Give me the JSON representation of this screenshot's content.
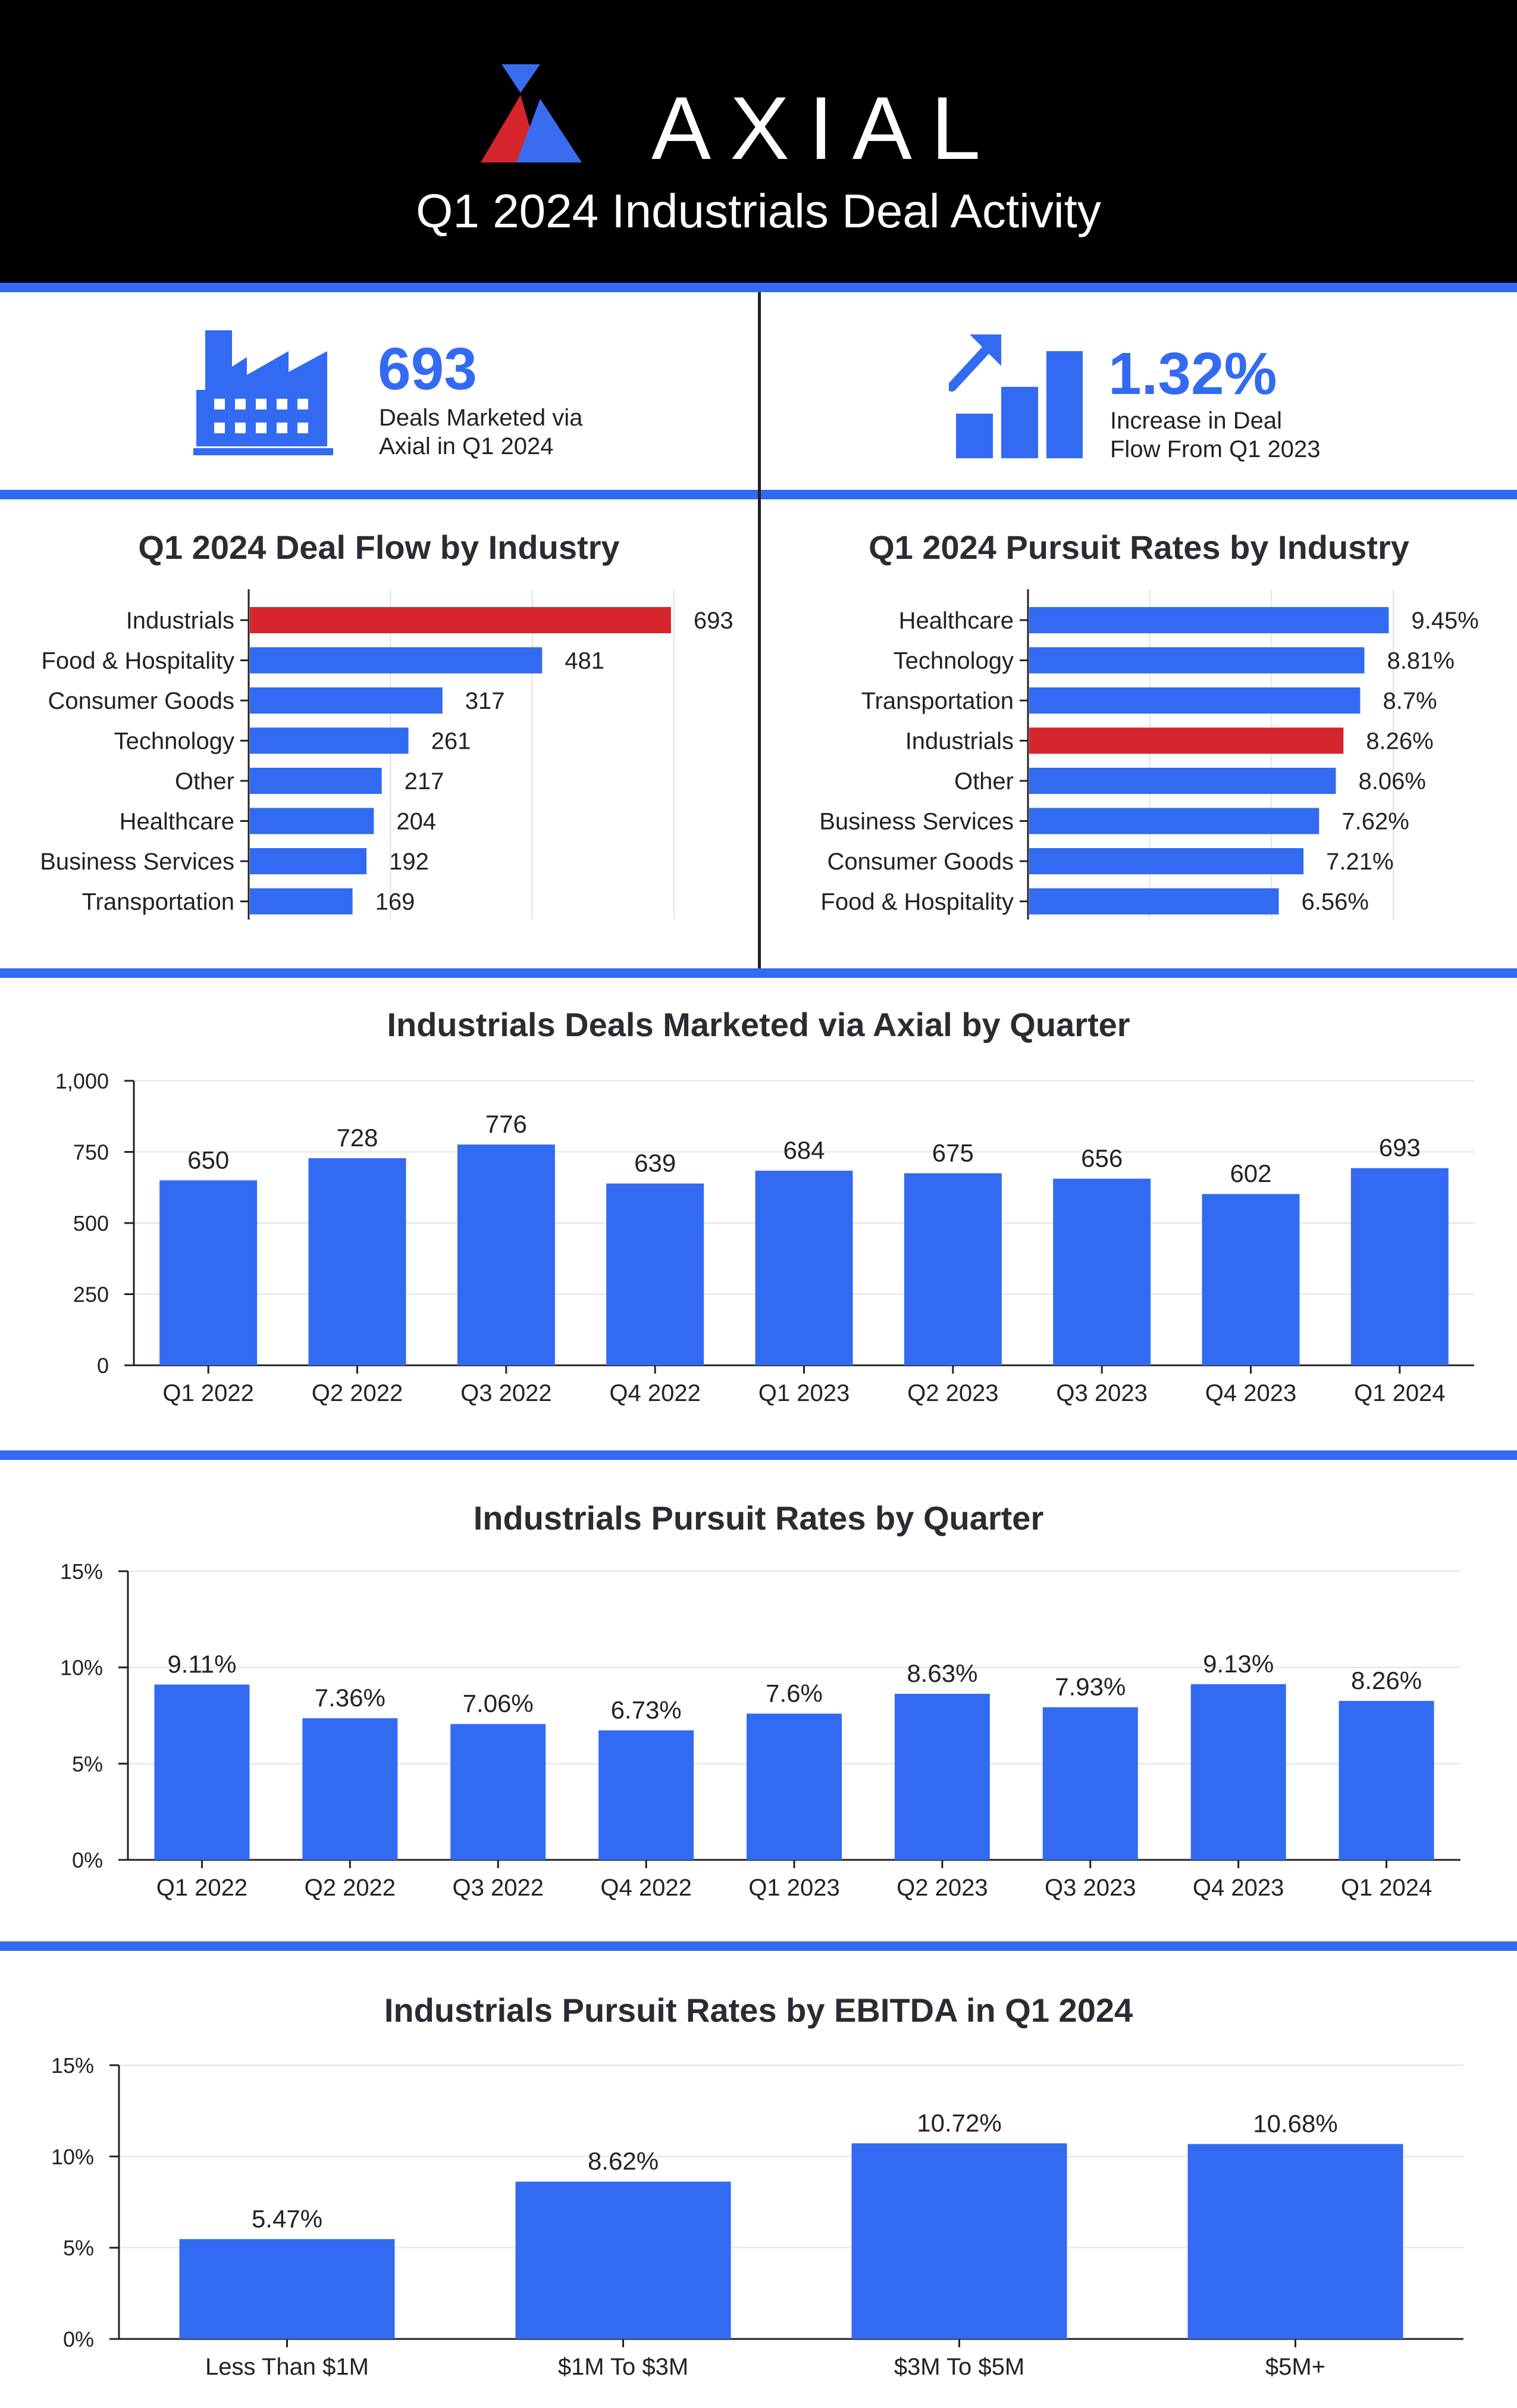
{
  "header": {
    "brand": "AXIAL",
    "title": "Q1 2024 Industrials Deal Activity"
  },
  "colors": {
    "primary": "#336af2",
    "highlight": "#d6262d",
    "header_bg": "#000000"
  },
  "stats": [
    {
      "value": "693",
      "line1": "Deals Marketed via",
      "line2": "Axial in Q1 2024",
      "icon": "factory-icon"
    },
    {
      "value": "1.32%",
      "line1": "Increase in Deal",
      "line2": "Flow From Q1 2023",
      "icon": "growth-chart-icon"
    }
  ],
  "chart_data": [
    {
      "id": "deal_flow_by_industry",
      "type": "bar",
      "orientation": "horizontal",
      "title": "Q1 2024 Deal Flow by Industry",
      "categories": [
        "Industrials",
        "Food & Hospitality",
        "Consumer Goods",
        "Technology",
        "Other",
        "Healthcare",
        "Business Services",
        "Transportation"
      ],
      "values": [
        693,
        481,
        317,
        261,
        217,
        204,
        192,
        169
      ],
      "labels": [
        "693",
        "481",
        "317",
        "261",
        "217",
        "204",
        "192",
        "169"
      ],
      "highlight": "Industrials",
      "xlim": [
        0,
        700
      ]
    },
    {
      "id": "pursuit_rates_by_industry",
      "type": "bar",
      "orientation": "horizontal",
      "title": "Q1 2024 Pursuit Rates by Industry",
      "categories": [
        "Healthcare",
        "Technology",
        "Transportation",
        "Industrials",
        "Other",
        "Business Services",
        "Consumer Goods",
        "Food & Hospitality"
      ],
      "values": [
        9.45,
        8.81,
        8.7,
        8.26,
        8.06,
        7.62,
        7.21,
        6.56
      ],
      "labels": [
        "9.45%",
        "8.81%",
        "8.7%",
        "8.26%",
        "8.06%",
        "7.62%",
        "7.21%",
        "6.56%"
      ],
      "highlight": "Industrials",
      "xlim": [
        0,
        9.6
      ]
    },
    {
      "id": "deals_by_quarter",
      "type": "bar",
      "title": "Industrials Deals Marketed via Axial by Quarter",
      "categories": [
        "Q1 2022",
        "Q2 2022",
        "Q3 2022",
        "Q4 2022",
        "Q1 2023",
        "Q2 2023",
        "Q3 2023",
        "Q4 2023",
        "Q1 2024"
      ],
      "values": [
        650,
        728,
        776,
        639,
        684,
        675,
        656,
        602,
        693
      ],
      "labels": [
        "650",
        "728",
        "776",
        "639",
        "684",
        "675",
        "656",
        "602",
        "693"
      ],
      "ylim": [
        0,
        1000
      ],
      "yticks": [
        0,
        250,
        500,
        750,
        1000
      ],
      "ytick_labels": [
        "0",
        "250",
        "500",
        "750",
        "1,000"
      ],
      "grid": true
    },
    {
      "id": "pursuit_rates_by_quarter",
      "type": "bar",
      "title": "Industrials Pursuit Rates by Quarter",
      "categories": [
        "Q1 2022",
        "Q2 2022",
        "Q3 2022",
        "Q4 2022",
        "Q1 2023",
        "Q2 2023",
        "Q3 2023",
        "Q4 2023",
        "Q1 2024"
      ],
      "values": [
        9.11,
        7.36,
        7.06,
        6.73,
        7.6,
        8.63,
        7.93,
        9.13,
        8.26
      ],
      "labels": [
        "9.11%",
        "7.36%",
        "7.06%",
        "6.73%",
        "7.6%",
        "8.63%",
        "7.93%",
        "9.13%",
        "8.26%"
      ],
      "ylim": [
        0,
        15
      ],
      "yticks": [
        0,
        5,
        10,
        15
      ],
      "ytick_labels": [
        "0%",
        "5%",
        "10%",
        "15%"
      ],
      "grid": true
    },
    {
      "id": "pursuit_rates_by_ebitda",
      "type": "bar",
      "title": "Industrials Pursuit Rates by EBITDA in Q1 2024",
      "categories": [
        "Less Than $1M",
        "$1M To $3M",
        "$3M To $5M",
        "$5M+"
      ],
      "values": [
        5.47,
        8.62,
        10.72,
        10.68
      ],
      "labels": [
        "5.47%",
        "8.62%",
        "10.72%",
        "10.68%"
      ],
      "ylim": [
        0,
        15
      ],
      "yticks": [
        0,
        5,
        10,
        15
      ],
      "ytick_labels": [
        "0%",
        "5%",
        "10%",
        "15%"
      ],
      "grid": true
    }
  ]
}
